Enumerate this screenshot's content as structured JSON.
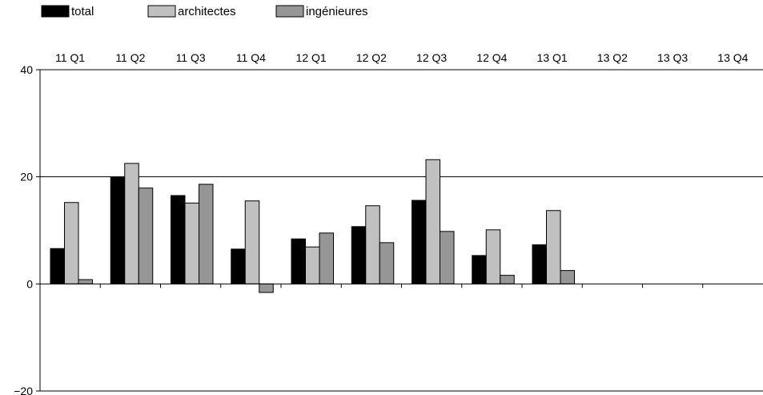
{
  "chart_data": {
    "type": "bar",
    "title": "",
    "xlabel": "",
    "ylabel": "",
    "categories": [
      "11 Q1",
      "11 Q2",
      "11 Q3",
      "11 Q4",
      "12 Q1",
      "12 Q2",
      "12 Q3",
      "12 Q4",
      "13 Q1",
      "13 Q2",
      "13 Q3",
      "13 Q4"
    ],
    "series": [
      {
        "name": "total",
        "color": "#000000",
        "values": [
          6.6,
          19.9,
          16.5,
          6.5,
          8.4,
          10.7,
          15.6,
          5.3,
          7.3,
          null,
          null,
          null
        ]
      },
      {
        "name": "architectes",
        "color": "#c0c0c0",
        "values": [
          15.2,
          22.5,
          15.1,
          15.5,
          6.9,
          14.6,
          23.2,
          10.1,
          13.7,
          null,
          null,
          null
        ]
      },
      {
        "name": "ingénieures",
        "color": "#969696",
        "values": [
          0.8,
          17.9,
          18.6,
          -1.6,
          9.5,
          7.7,
          9.8,
          1.6,
          2.5,
          null,
          null,
          null
        ]
      }
    ],
    "ylim": [
      -20,
      40
    ],
    "yticks": [
      -20,
      0,
      20,
      40
    ],
    "ytick_labels": [
      "−20",
      "0",
      "20",
      "40"
    ],
    "gridlines": [
      20,
      40
    ],
    "legend_position": "top-left",
    "xaxis_labels_position": "top"
  }
}
